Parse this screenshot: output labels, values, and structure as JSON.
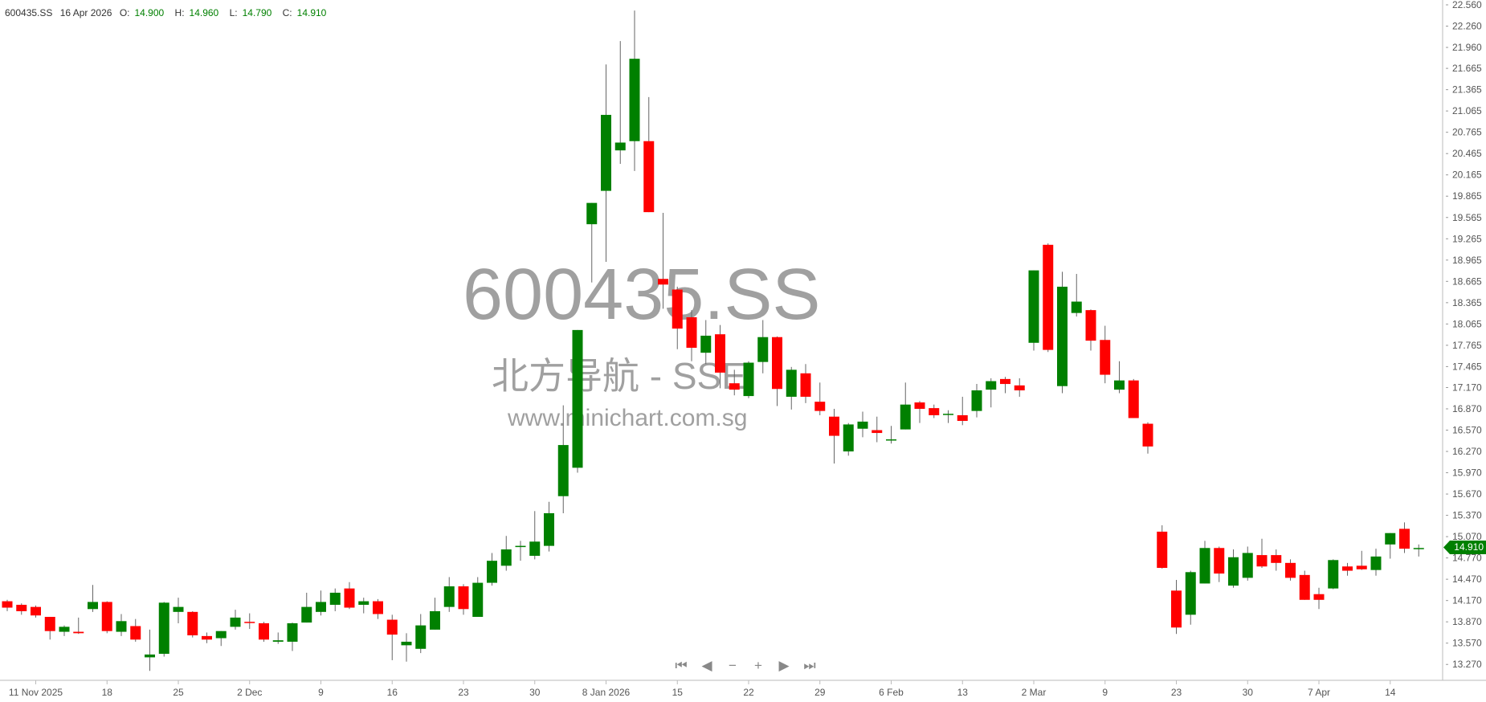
{
  "header": {
    "symbol": "600435.SS",
    "date": "16 Apr 2026",
    "open_label": "O:",
    "open": "14.900",
    "high_label": "H:",
    "high": "14.960",
    "low_label": "L:",
    "low": "14.790",
    "close_label": "C:",
    "close": "14.910"
  },
  "watermark": {
    "symbol": "600435.SS",
    "name": "北方导航 - SSE",
    "site": "www.minichart.com.sg"
  },
  "last_price_tag": "14.910",
  "navigation": {
    "icons": [
      "first-icon",
      "prev-icon",
      "zoom-out-icon",
      "zoom-in-icon",
      "next-icon",
      "last-icon"
    ],
    "glyphs": [
      "⏮",
      "◀",
      "−",
      "+",
      "▶",
      "⏭"
    ]
  },
  "colors": {
    "up": "#008000",
    "down": "#ff0000",
    "wick": "#666666",
    "tag": "#008000"
  },
  "chart_data": {
    "type": "candlestick",
    "ylim": [
      13.1,
      22.62
    ],
    "y_ticks": [
      "22.560",
      "22.260",
      "21.960",
      "21.665",
      "21.365",
      "21.065",
      "20.765",
      "20.465",
      "20.165",
      "19.865",
      "19.565",
      "19.265",
      "18.965",
      "18.665",
      "18.365",
      "18.065",
      "17.765",
      "17.465",
      "17.170",
      "16.870",
      "16.570",
      "16.270",
      "15.970",
      "15.670",
      "15.370",
      "15.070",
      "14.770",
      "14.470",
      "14.170",
      "13.870",
      "13.570",
      "13.270"
    ],
    "x_ticks": [
      {
        "label": "11 Nov 2025",
        "candle": 3
      },
      {
        "label": "18",
        "candle": 8
      },
      {
        "label": "25",
        "candle": 13
      },
      {
        "label": "2 Dec",
        "candle": 18
      },
      {
        "label": "9",
        "candle": 23
      },
      {
        "label": "16",
        "candle": 28
      },
      {
        "label": "23",
        "candle": 33
      },
      {
        "label": "30",
        "candle": 38
      },
      {
        "label": "8 Jan 2026",
        "candle": 43
      },
      {
        "label": "15",
        "candle": 48
      },
      {
        "label": "22",
        "candle": 53
      },
      {
        "label": "29",
        "candle": 58
      },
      {
        "label": "6 Feb",
        "candle": 63
      },
      {
        "label": "13",
        "candle": 68
      },
      {
        "label": "2 Mar",
        "candle": 73
      },
      {
        "label": "9",
        "candle": 78
      },
      {
        "label": "23",
        "candle": 83
      },
      {
        "label": "30",
        "candle": 88
      },
      {
        "label": "7 Apr",
        "candle": 93
      },
      {
        "label": "14",
        "candle": 98
      }
    ],
    "ohlc_fields": [
      "open",
      "high",
      "low",
      "close"
    ],
    "candles": [
      [
        14.16,
        14.18,
        14.02,
        14.07
      ],
      [
        14.11,
        14.13,
        13.97,
        14.02
      ],
      [
        14.08,
        14.1,
        13.93,
        13.96
      ],
      [
        13.94,
        13.94,
        13.62,
        13.74
      ],
      [
        13.73,
        13.82,
        13.67,
        13.8
      ],
      [
        13.73,
        13.93,
        13.7,
        13.71
      ],
      [
        14.05,
        14.39,
        14.01,
        14.15
      ],
      [
        14.15,
        14.16,
        13.71,
        13.74
      ],
      [
        13.73,
        13.98,
        13.67,
        13.88
      ],
      [
        13.81,
        13.91,
        13.59,
        13.62
      ],
      [
        13.37,
        13.76,
        13.18,
        13.41
      ],
      [
        13.42,
        14.15,
        13.38,
        14.14
      ],
      [
        14.01,
        14.21,
        13.85,
        14.08
      ],
      [
        14.01,
        14.02,
        13.65,
        13.68
      ],
      [
        13.67,
        13.72,
        13.57,
        13.62
      ],
      [
        13.64,
        13.74,
        13.53,
        13.74
      ],
      [
        13.8,
        14.04,
        13.76,
        13.93
      ],
      [
        13.87,
        13.99,
        13.77,
        13.86
      ],
      [
        13.85,
        13.87,
        13.59,
        13.62
      ],
      [
        13.59,
        13.72,
        13.56,
        13.61
      ],
      [
        13.59,
        13.86,
        13.46,
        13.85
      ],
      [
        13.86,
        14.28,
        13.86,
        14.08
      ],
      [
        14.01,
        14.31,
        13.96,
        14.15
      ],
      [
        14.11,
        14.34,
        14.02,
        14.28
      ],
      [
        14.34,
        14.43,
        14.05,
        14.07
      ],
      [
        14.11,
        14.21,
        13.99,
        14.16
      ],
      [
        14.16,
        14.19,
        13.91,
        13.98
      ],
      [
        13.9,
        13.97,
        13.33,
        13.69
      ],
      [
        13.54,
        13.71,
        13.31,
        13.59
      ],
      [
        13.49,
        13.98,
        13.43,
        13.82
      ],
      [
        13.76,
        14.21,
        13.76,
        14.02
      ],
      [
        14.08,
        14.5,
        14.01,
        14.37
      ],
      [
        14.37,
        14.4,
        13.97,
        14.05
      ],
      [
        13.94,
        14.5,
        13.94,
        14.42
      ],
      [
        14.42,
        14.84,
        14.38,
        14.73
      ],
      [
        14.66,
        15.08,
        14.59,
        14.89
      ],
      [
        14.93,
        15.01,
        14.73,
        14.94
      ],
      [
        14.8,
        15.43,
        14.75,
        15.0
      ],
      [
        14.94,
        15.56,
        14.86,
        15.4
      ],
      [
        15.64,
        16.92,
        15.4,
        16.36
      ],
      [
        16.04,
        17.98,
        15.97,
        17.98
      ],
      [
        19.47,
        19.77,
        18.65,
        19.77
      ],
      [
        19.94,
        21.72,
        18.94,
        21.01
      ],
      [
        20.51,
        22.05,
        20.32,
        20.62
      ],
      [
        20.64,
        22.48,
        20.22,
        21.8
      ],
      [
        20.64,
        21.26,
        19.64,
        19.64
      ],
      [
        18.7,
        19.63,
        18.28,
        18.62
      ],
      [
        18.55,
        18.59,
        17.71,
        18.0
      ],
      [
        18.16,
        18.26,
        17.54,
        17.73
      ],
      [
        17.66,
        18.12,
        17.5,
        17.9
      ],
      [
        17.92,
        18.05,
        17.16,
        17.38
      ],
      [
        17.23,
        17.42,
        17.06,
        17.14
      ],
      [
        17.05,
        17.54,
        17.02,
        17.52
      ],
      [
        17.53,
        18.12,
        17.37,
        17.88
      ],
      [
        17.88,
        17.89,
        16.91,
        17.15
      ],
      [
        17.04,
        17.46,
        16.86,
        17.42
      ],
      [
        17.37,
        17.5,
        16.95,
        17.04
      ],
      [
        16.97,
        17.24,
        16.78,
        16.84
      ],
      [
        16.76,
        16.87,
        16.1,
        16.49
      ],
      [
        16.27,
        16.67,
        16.21,
        16.65
      ],
      [
        16.59,
        16.83,
        16.47,
        16.69
      ],
      [
        16.57,
        16.76,
        16.4,
        16.53
      ],
      [
        16.43,
        16.63,
        16.38,
        16.44
      ],
      [
        16.58,
        17.24,
        16.58,
        16.93
      ],
      [
        16.96,
        16.98,
        16.67,
        16.87
      ],
      [
        16.88,
        16.93,
        16.74,
        16.78
      ],
      [
        16.79,
        16.85,
        16.67,
        16.8
      ],
      [
        16.78,
        17.04,
        16.64,
        16.7
      ],
      [
        16.84,
        17.22,
        16.75,
        17.13
      ],
      [
        17.14,
        17.3,
        16.89,
        17.26
      ],
      [
        17.29,
        17.32,
        17.09,
        17.22
      ],
      [
        17.2,
        17.3,
        17.04,
        17.13
      ],
      [
        17.8,
        18.82,
        17.69,
        18.82
      ],
      [
        19.18,
        19.2,
        17.67,
        17.7
      ],
      [
        17.19,
        18.8,
        17.09,
        18.59
      ],
      [
        18.22,
        18.77,
        18.17,
        18.38
      ],
      [
        18.26,
        18.27,
        17.69,
        17.83
      ],
      [
        17.84,
        18.04,
        17.23,
        17.35
      ],
      [
        17.14,
        17.54,
        17.09,
        17.27
      ],
      [
        17.27,
        17.29,
        16.74,
        16.74
      ],
      [
        16.66,
        16.68,
        16.24,
        16.34
      ],
      [
        15.14,
        15.23,
        14.62,
        14.63
      ],
      [
        14.31,
        14.46,
        13.7,
        13.79
      ],
      [
        13.97,
        14.59,
        13.83,
        14.57
      ],
      [
        14.41,
        15.01,
        14.41,
        14.91
      ],
      [
        14.91,
        14.93,
        14.43,
        14.55
      ],
      [
        14.38,
        14.89,
        14.35,
        14.78
      ],
      [
        14.49,
        14.93,
        14.45,
        14.84
      ],
      [
        14.81,
        15.04,
        14.63,
        14.65
      ],
      [
        14.81,
        14.89,
        14.59,
        14.7
      ],
      [
        14.7,
        14.75,
        14.45,
        14.49
      ],
      [
        14.53,
        14.59,
        14.18,
        14.18
      ],
      [
        14.26,
        14.35,
        14.05,
        14.18
      ],
      [
        14.34,
        14.75,
        14.33,
        14.74
      ],
      [
        14.65,
        14.7,
        14.52,
        14.59
      ],
      [
        14.66,
        14.87,
        14.6,
        14.61
      ],
      [
        14.6,
        14.9,
        14.52,
        14.79
      ],
      [
        14.96,
        15.12,
        14.76,
        15.12
      ],
      [
        15.18,
        15.27,
        14.84,
        14.9
      ],
      [
        14.9,
        14.96,
        14.79,
        14.91
      ]
    ]
  }
}
